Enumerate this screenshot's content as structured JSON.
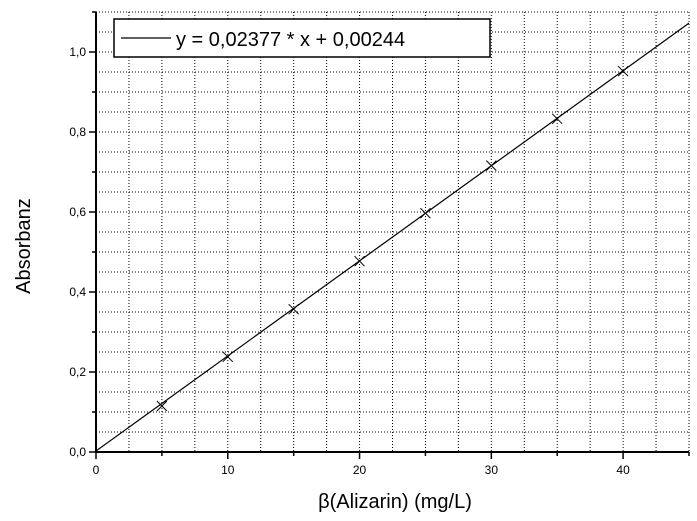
{
  "chart_data": {
    "type": "scatter",
    "xlabel": "β(Alizarin) (mg/L)",
    "ylabel": "Absorbanz",
    "xlim": [
      0,
      45
    ],
    "ylim": [
      0,
      1.1
    ],
    "grid": true,
    "legend_position": "top-left",
    "x_ticks": [
      "0",
      "10",
      "20",
      "30",
      "40"
    ],
    "y_ticks": [
      "0,0",
      "0,2",
      "0,4",
      "0,6",
      "0,8",
      "1,0"
    ],
    "series": [
      {
        "x": [
          5,
          10,
          15,
          20,
          25,
          30,
          35,
          40
        ],
        "y": [
          0.115,
          0.238,
          0.357,
          0.477,
          0.597,
          0.716,
          0.833,
          0.952
        ],
        "marker": "x"
      }
    ],
    "fit": {
      "slope": 0.02377,
      "intercept": 0.00244,
      "x_range": [
        0,
        45
      ],
      "label": "y = 0,02377 * x + 0,00244"
    },
    "colors": {
      "line": "#000000",
      "grid": "#000000",
      "background": "#ffffff"
    }
  }
}
